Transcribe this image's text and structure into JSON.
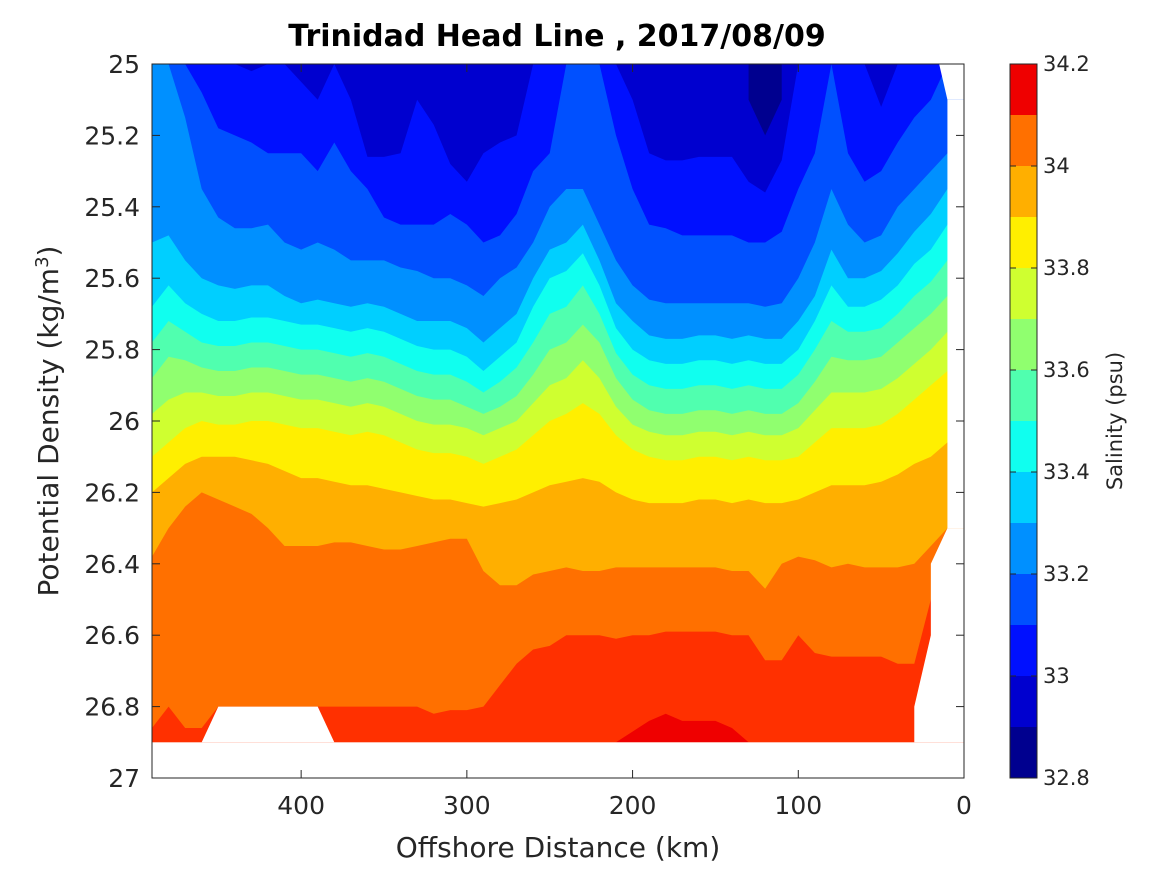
{
  "chart_data": {
    "type": "heatmap",
    "subtype": "filled-contour",
    "title": "Trinidad Head Line , 2017/08/09",
    "xlabel": "Offshore Distance (km)",
    "ylabel_main": "Potential Density (kg/m",
    "ylabel_sup": "3",
    "ylabel_close": ")",
    "colorbar_label": "Salinity (psu)",
    "x_axis": {
      "range": [
        490,
        0
      ],
      "reversed": true,
      "ticks": [
        400,
        300,
        200,
        100,
        0
      ],
      "tick_labels": [
        "400",
        "300",
        "200",
        "100",
        "0"
      ]
    },
    "y_axis": {
      "range": [
        25,
        27
      ],
      "reversed": true,
      "ticks": [
        25,
        25.2,
        25.4,
        25.6,
        25.8,
        26,
        26.2,
        26.4,
        26.6,
        26.8,
        27
      ],
      "tick_labels": [
        "25",
        "25.2",
        "25.4",
        "25.6",
        "25.8",
        "26",
        "26.2",
        "26.4",
        "26.6",
        "26.8",
        "27"
      ]
    },
    "colorbar": {
      "range": [
        32.8,
        34.2
      ],
      "ticks": [
        32.8,
        33,
        33.2,
        33.4,
        33.6,
        33.8,
        34,
        34.2
      ],
      "tick_labels": [
        "32.8",
        "33",
        "33.2",
        "33.4",
        "33.6",
        "33.8",
        "34",
        "34.2"
      ],
      "levels": [
        32.8,
        32.9,
        33.0,
        33.1,
        33.2,
        33.3,
        33.4,
        33.5,
        33.6,
        33.7,
        33.8,
        33.9,
        34.0,
        34.1,
        34.2
      ],
      "colors": [
        "#00008f",
        "#0000cf",
        "#0010ff",
        "#0050ff",
        "#0090ff",
        "#00cfff",
        "#10ffef",
        "#50ffaf",
        "#90ff6f",
        "#cfff30",
        "#ffef00",
        "#ffaf00",
        "#ff7000",
        "#ff3000",
        "#ef0000"
      ]
    },
    "bands": [
      {
        "color": "#00008f",
        "x": [
          130,
          120,
          110
        ],
        "y": [
          25.0,
          25.0,
          25.0
        ],
        "bottom_y": [
          25.1,
          25.2,
          25.1
        ]
      },
      {
        "x": [
          490,
          0
        ],
        "boundaries": "see contour_lines"
      }
    ],
    "contour_lines": {
      "x": [
        490,
        480,
        470,
        460,
        450,
        440,
        430,
        420,
        410,
        400,
        390,
        380,
        370,
        360,
        350,
        340,
        330,
        320,
        310,
        300,
        290,
        280,
        270,
        260,
        250,
        240,
        230,
        220,
        210,
        200,
        190,
        180,
        170,
        160,
        150,
        140,
        130,
        120,
        110,
        100,
        90,
        80,
        70,
        60,
        50,
        40,
        30,
        20,
        10
      ],
      "s33_0": [
        25.0,
        25.0,
        25.0,
        25.0,
        25.0,
        25.0,
        25.02,
        25.0,
        25.0,
        25.05,
        25.1,
        25.0,
        25.1,
        25.26,
        25.26,
        25.25,
        25.1,
        25.17,
        25.28,
        25.33,
        25.25,
        25.22,
        25.2,
        25.0,
        25.0,
        25.0,
        25.0,
        25.0,
        25.0,
        25.1,
        25.25,
        25.27,
        25.27,
        25.26,
        25.26,
        25.26,
        25.33,
        25.36,
        25.27,
        25.0,
        25.0,
        25.0,
        25.0,
        25.0,
        25.12,
        25.0,
        25.0,
        25.0,
        25.0
      ],
      "s33_1": [
        25.0,
        25.0,
        25.0,
        25.08,
        25.18,
        25.2,
        25.22,
        25.25,
        25.25,
        25.25,
        25.3,
        25.22,
        25.3,
        25.35,
        25.43,
        25.45,
        25.45,
        25.45,
        25.42,
        25.45,
        25.5,
        25.48,
        25.42,
        25.3,
        25.25,
        25.0,
        25.0,
        25.0,
        25.2,
        25.35,
        25.45,
        25.46,
        25.48,
        25.48,
        25.48,
        25.48,
        25.5,
        25.5,
        25.47,
        25.35,
        25.25,
        25.0,
        25.25,
        25.33,
        25.3,
        25.22,
        25.15,
        25.1,
        25.0
      ],
      "s33_2": [
        25.0,
        25.0,
        25.15,
        25.35,
        25.43,
        25.46,
        25.46,
        25.45,
        25.5,
        25.52,
        25.5,
        25.52,
        25.55,
        25.55,
        25.55,
        25.57,
        25.58,
        25.6,
        25.6,
        25.62,
        25.65,
        25.6,
        25.57,
        25.5,
        25.4,
        25.35,
        25.35,
        25.45,
        25.55,
        25.62,
        25.66,
        25.67,
        25.67,
        25.67,
        25.67,
        25.67,
        25.67,
        25.68,
        25.67,
        25.6,
        25.5,
        25.35,
        25.45,
        25.5,
        25.48,
        25.4,
        25.35,
        25.3,
        25.25
      ],
      "s33_3": [
        25.5,
        25.48,
        25.55,
        25.6,
        25.62,
        25.63,
        25.62,
        25.62,
        25.65,
        25.67,
        25.66,
        25.67,
        25.68,
        25.67,
        25.68,
        25.7,
        25.72,
        25.72,
        25.72,
        25.74,
        25.78,
        25.74,
        25.7,
        25.6,
        25.52,
        25.5,
        25.45,
        25.55,
        25.67,
        25.72,
        25.76,
        25.77,
        25.77,
        25.76,
        25.76,
        25.77,
        25.76,
        25.77,
        25.77,
        25.72,
        25.65,
        25.52,
        25.6,
        25.6,
        25.58,
        25.53,
        25.47,
        25.42,
        25.35
      ],
      "s33_4": [
        25.68,
        25.62,
        25.67,
        25.7,
        25.72,
        25.72,
        25.71,
        25.71,
        25.72,
        25.73,
        25.73,
        25.74,
        25.75,
        25.74,
        25.75,
        25.77,
        25.79,
        25.8,
        25.8,
        25.82,
        25.86,
        25.82,
        25.78,
        25.68,
        25.6,
        25.58,
        25.53,
        25.62,
        25.74,
        25.8,
        25.83,
        25.84,
        25.84,
        25.83,
        25.83,
        25.84,
        25.83,
        25.84,
        25.84,
        25.8,
        25.72,
        25.62,
        25.68,
        25.68,
        25.66,
        25.62,
        25.56,
        25.52,
        25.45
      ],
      "s33_5": [
        25.78,
        25.72,
        25.75,
        25.78,
        25.79,
        25.79,
        25.78,
        25.78,
        25.79,
        25.8,
        25.8,
        25.81,
        25.82,
        25.81,
        25.82,
        25.84,
        25.86,
        25.87,
        25.87,
        25.89,
        25.92,
        25.89,
        25.85,
        25.78,
        25.7,
        25.68,
        25.62,
        25.7,
        25.81,
        25.87,
        25.9,
        25.91,
        25.91,
        25.9,
        25.9,
        25.91,
        25.9,
        25.91,
        25.91,
        25.87,
        25.8,
        25.72,
        25.75,
        25.75,
        25.74,
        25.7,
        25.65,
        25.61,
        25.55
      ],
      "s33_6": [
        25.88,
        25.82,
        25.83,
        25.85,
        25.86,
        25.86,
        25.85,
        25.85,
        25.86,
        25.87,
        25.87,
        25.88,
        25.89,
        25.88,
        25.89,
        25.91,
        25.93,
        25.94,
        25.94,
        25.96,
        25.98,
        25.96,
        25.93,
        25.87,
        25.8,
        25.78,
        25.73,
        25.78,
        25.88,
        25.94,
        25.97,
        25.98,
        25.98,
        25.97,
        25.97,
        25.98,
        25.97,
        25.98,
        25.98,
        25.95,
        25.89,
        25.82,
        25.83,
        25.83,
        25.82,
        25.78,
        25.74,
        25.7,
        25.65
      ],
      "s33_7": [
        25.98,
        25.94,
        25.92,
        25.92,
        25.93,
        25.93,
        25.92,
        25.92,
        25.93,
        25.94,
        25.94,
        25.95,
        25.96,
        25.95,
        25.96,
        25.98,
        26.0,
        26.01,
        26.01,
        26.02,
        26.04,
        26.02,
        26.0,
        25.95,
        25.9,
        25.88,
        25.83,
        25.88,
        25.96,
        26.01,
        26.03,
        26.04,
        26.04,
        26.03,
        26.03,
        26.04,
        26.03,
        26.04,
        26.04,
        26.02,
        25.97,
        25.92,
        25.92,
        25.92,
        25.91,
        25.88,
        25.84,
        25.8,
        25.75
      ],
      "s33_8": [
        26.1,
        26.06,
        26.02,
        26.0,
        26.01,
        26.01,
        26.0,
        26.0,
        26.01,
        26.02,
        26.02,
        26.03,
        26.04,
        26.03,
        26.04,
        26.06,
        26.08,
        26.09,
        26.09,
        26.1,
        26.12,
        26.1,
        26.08,
        26.04,
        26.0,
        25.98,
        25.95,
        25.98,
        26.04,
        26.08,
        26.1,
        26.11,
        26.11,
        26.1,
        26.1,
        26.11,
        26.1,
        26.11,
        26.11,
        26.1,
        26.06,
        26.02,
        26.02,
        26.02,
        26.01,
        25.98,
        25.94,
        25.9,
        25.86
      ],
      "s33_9": [
        26.2,
        26.16,
        26.12,
        26.1,
        26.1,
        26.1,
        26.11,
        26.12,
        26.14,
        26.16,
        26.16,
        26.17,
        26.18,
        26.18,
        26.19,
        26.2,
        26.21,
        26.22,
        26.22,
        26.23,
        26.24,
        26.23,
        26.22,
        26.2,
        26.18,
        26.17,
        26.16,
        26.17,
        26.2,
        26.22,
        26.23,
        26.23,
        26.23,
        26.22,
        26.22,
        26.23,
        26.22,
        26.23,
        26.23,
        26.22,
        26.2,
        26.18,
        26.18,
        26.18,
        26.17,
        26.15,
        26.12,
        26.1,
        26.06
      ],
      "s34_0_top": [
        26.38,
        26.3,
        26.24,
        26.2,
        26.22,
        26.24,
        26.26,
        26.3,
        26.35,
        26.35,
        26.35,
        26.34,
        26.34,
        26.35,
        26.36,
        26.36,
        26.35,
        26.34,
        26.33,
        26.33,
        26.42,
        26.46,
        26.46,
        26.43,
        26.42,
        26.41,
        26.42,
        26.42,
        26.41,
        26.41,
        26.41,
        26.41,
        26.41,
        26.41,
        26.41,
        26.42,
        26.42,
        26.47,
        26.4,
        26.38,
        26.39,
        26.41,
        26.4,
        26.41,
        26.41,
        26.41,
        26.4,
        26.35,
        26.3
      ],
      "s34_1_top": [
        26.86,
        26.8,
        26.86,
        26.86,
        26.8,
        26.8,
        26.8,
        26.8,
        26.8,
        26.8,
        26.8,
        26.8,
        26.8,
        26.8,
        26.8,
        26.8,
        26.8,
        26.82,
        26.81,
        26.81,
        26.8,
        26.74,
        26.68,
        26.64,
        26.63,
        26.6,
        26.6,
        26.6,
        26.61,
        26.6,
        26.6,
        26.59,
        26.59,
        26.59,
        26.59,
        26.6,
        26.6,
        26.67,
        26.67,
        26.6,
        26.65,
        26.66,
        26.66,
        26.66,
        26.66,
        26.68,
        26.68,
        26.5,
        26.5
      ],
      "s34_2_region": {
        "x": [
          210,
          190,
          180,
          170,
          150,
          140,
          130
        ],
        "top": [
          26.9,
          26.84,
          26.82,
          26.84,
          26.84,
          26.86,
          26.9
        ]
      }
    },
    "no_data_mask": {
      "bottom_strip": [
        26.9,
        27.0
      ],
      "notch": {
        "x": [
          460,
          450,
          400,
          390,
          380
        ],
        "top_y": 26.8
      },
      "right_edge": {
        "x": [
          10,
          20,
          30
        ],
        "note": "white triangles at top-right and lower-right"
      }
    },
    "grid": false,
    "legend": "colorbar-right"
  }
}
